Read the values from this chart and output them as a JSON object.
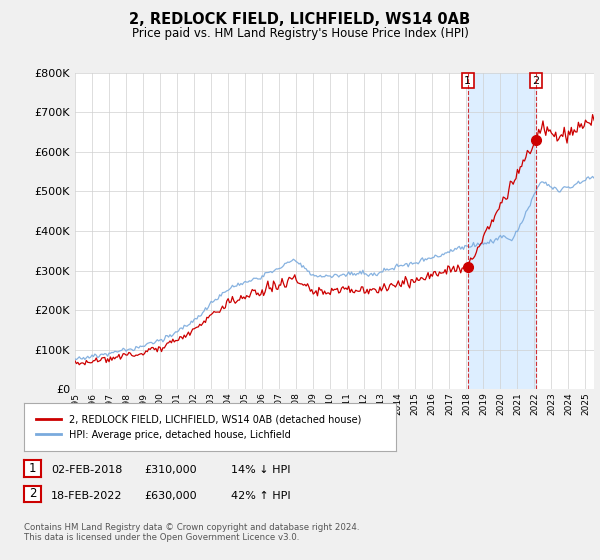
{
  "title": "2, REDLOCK FIELD, LICHFIELD, WS14 0AB",
  "subtitle": "Price paid vs. HM Land Registry's House Price Index (HPI)",
  "red_label": "2, REDLOCK FIELD, LICHFIELD, WS14 0AB (detached house)",
  "blue_label": "HPI: Average price, detached house, Lichfield",
  "transaction1_date": "02-FEB-2018",
  "transaction1_price": "£310,000",
  "transaction1_hpi": "14% ↓ HPI",
  "transaction2_date": "18-FEB-2022",
  "transaction2_price": "£630,000",
  "transaction2_hpi": "42% ↑ HPI",
  "footer": "Contains HM Land Registry data © Crown copyright and database right 2024.\nThis data is licensed under the Open Government Licence v3.0.",
  "ylim": [
    0,
    800000
  ],
  "yticks": [
    0,
    100000,
    200000,
    300000,
    400000,
    500000,
    600000,
    700000,
    800000
  ],
  "bg_color": "#f0f0f0",
  "plot_bg_color": "#ffffff",
  "red_color": "#cc0000",
  "blue_color": "#7aaadd",
  "shade_color": "#ddeeff",
  "year1": 2018.083,
  "year2": 2022.083,
  "price1": 310000,
  "price2": 630000,
  "xstart": 1995,
  "xend": 2025.5
}
